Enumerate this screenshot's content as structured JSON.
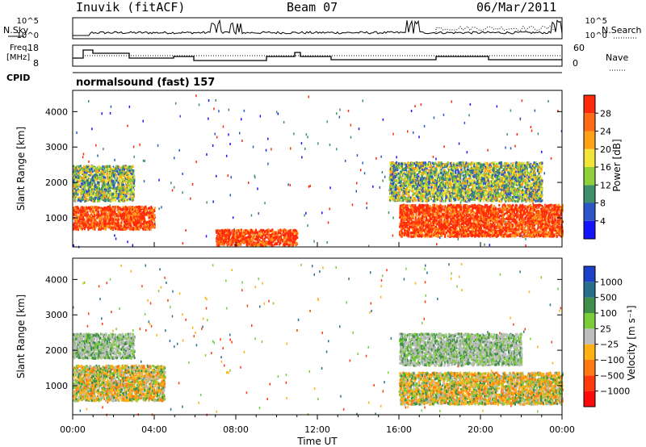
{
  "header": {
    "station": "Inuvik (fitACF)",
    "beam": "Beam 07",
    "date": "06/Mar/2011"
  },
  "panels": {
    "nsky": {
      "label": "N.Sky",
      "ticks": [
        "10^5",
        "10^0"
      ],
      "right_label": "N.Search",
      "right_ticks": [
        "10^5",
        "10^0"
      ]
    },
    "freq": {
      "label_line1": "Freq.",
      "label_line2": "[MHz]",
      "ticks": [
        "18",
        "8"
      ],
      "right_label": "Nave",
      "right_ticks": [
        "60",
        "0"
      ]
    },
    "cpid": {
      "label": "CPID",
      "program": "normalsound (fast) 157"
    }
  },
  "chart_data": [
    {
      "type": "heatmap",
      "title": "",
      "ylabel": "Slant Range [km]",
      "xlabel": "Time UT",
      "yticks": [
        "1000",
        "2000",
        "3000",
        "4000"
      ],
      "ylim": [
        180,
        4600
      ],
      "xlim": [
        "00:00",
        "24:00"
      ],
      "colorbar": {
        "label": "Power [dB]",
        "ticks": [
          "4",
          "8",
          "12",
          "16",
          "20",
          "24",
          "28"
        ],
        "colors": [
          "#1414ff",
          "#2c55c8",
          "#3f8f6a",
          "#8fd13a",
          "#f2e43a",
          "#ffa019",
          "#ff6a14",
          "#ff2a0a"
        ]
      },
      "features": [
        {
          "x": [
            0.0,
            4.0
          ],
          "y": [
            700,
            1350
          ],
          "level": "high"
        },
        {
          "x": [
            7.0,
            11.0
          ],
          "y": [
            250,
            700
          ],
          "level": "high"
        },
        {
          "x": [
            16.0,
            24.0
          ],
          "y": [
            500,
            1400
          ],
          "level": "high"
        },
        {
          "x": [
            0.0,
            3.0
          ],
          "y": [
            1500,
            2500
          ],
          "level": "medium"
        },
        {
          "x": [
            15.5,
            23.0
          ],
          "y": [
            1500,
            2600
          ],
          "level": "medium"
        }
      ]
    },
    {
      "type": "heatmap",
      "title": "",
      "ylabel": "Slant Range [km]",
      "xlabel": "Time UT",
      "yticks": [
        "1000",
        "2000",
        "3000",
        "4000"
      ],
      "ylim": [
        180,
        4600
      ],
      "xlim": [
        "00:00",
        "24:00"
      ],
      "colorbar": {
        "label": "Velocity [m s⁻¹]",
        "ticks": [
          "1000",
          "500",
          "100",
          "25",
          "−25",
          "−100",
          "−500",
          "−1000"
        ],
        "colors": [
          "#1e3fc8",
          "#2a6e8e",
          "#3f8f4a",
          "#7ccc3a",
          "#bdbdbd",
          "#ffb114",
          "#ff7a14",
          "#ff3a0a",
          "#ff0a0a"
        ]
      },
      "features": [
        {
          "x": [
            0.0,
            4.5
          ],
          "y": [
            600,
            1600
          ],
          "level": "negative"
        },
        {
          "x": [
            0.0,
            3.0
          ],
          "y": [
            1800,
            2500
          ],
          "level": "near-zero"
        },
        {
          "x": [
            16.0,
            24.0
          ],
          "y": [
            500,
            1400
          ],
          "level": "negative"
        },
        {
          "x": [
            16.0,
            22.0
          ],
          "y": [
            1600,
            2500
          ],
          "level": "near-zero"
        }
      ]
    }
  ],
  "x_axis": {
    "ticks": [
      "00:00",
      "04:00",
      "08:00",
      "12:00",
      "16:00",
      "20:00",
      "00:00"
    ],
    "label": "Time UT"
  }
}
